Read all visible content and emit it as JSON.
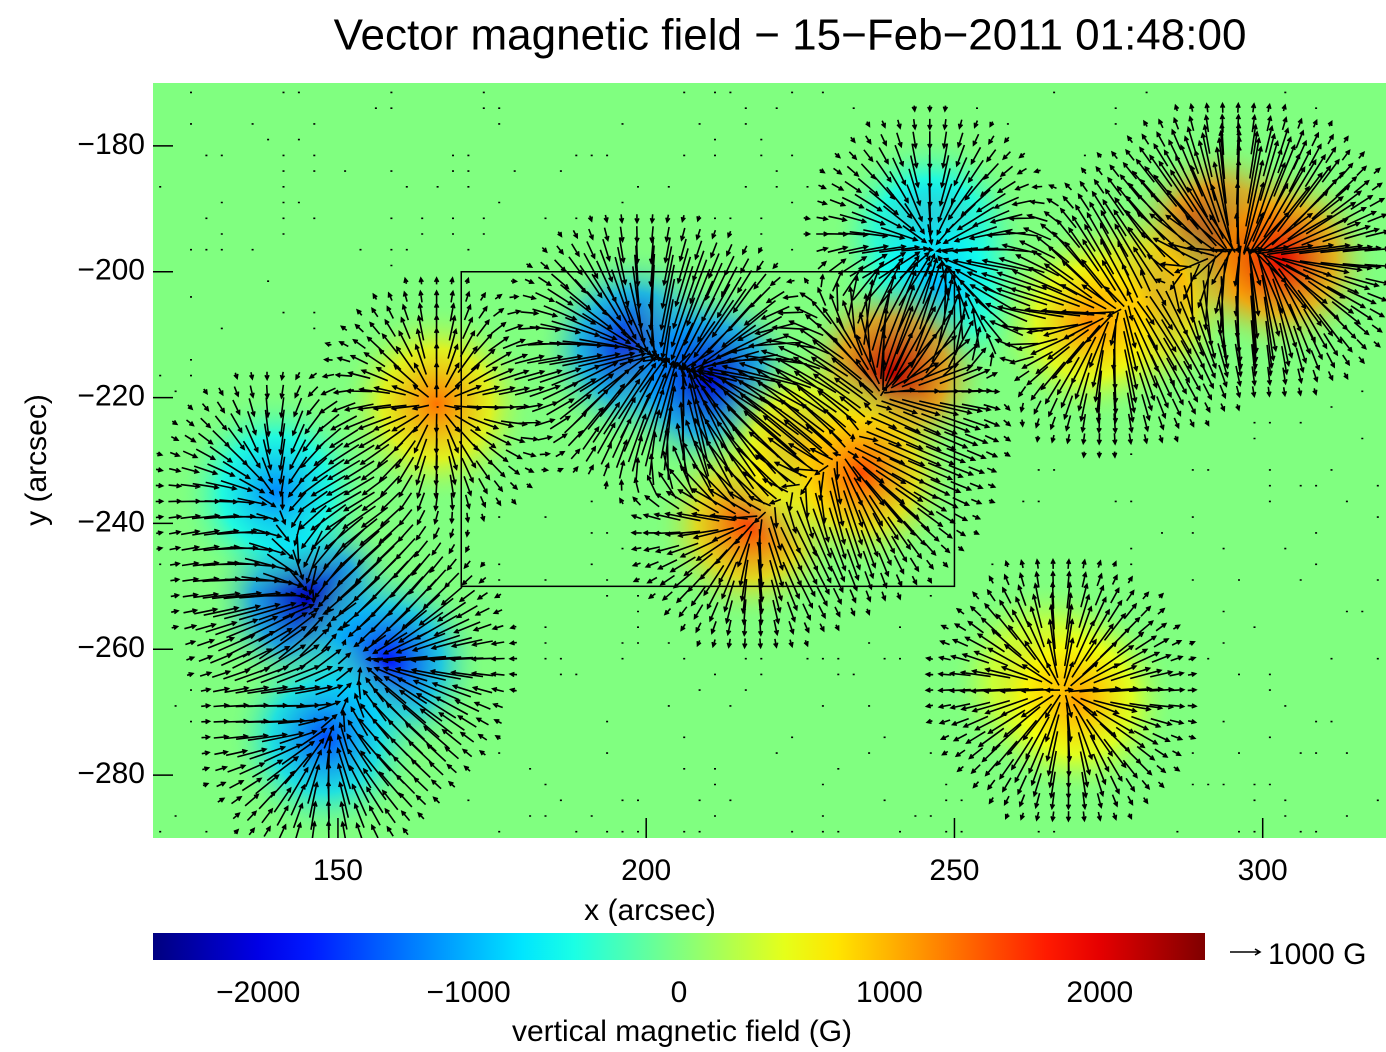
{
  "chart_data": {
    "type": "vector-magnetogram",
    "title": "Vector magnetic field − 15−Feb−2011 01:48:00",
    "x_label": "x (arcsec)",
    "y_label": "y (arcsec)",
    "xlim": [
      120,
      320
    ],
    "ylim": [
      -290,
      -170
    ],
    "xticks": [
      150,
      200,
      250,
      300
    ],
    "yticks": [
      {
        "value": -180,
        "label": "−180"
      },
      {
        "value": -200,
        "label": "−200"
      },
      {
        "value": -220,
        "label": "−220"
      },
      {
        "value": -240,
        "label": "−240"
      },
      {
        "value": -260,
        "label": "−260"
      },
      {
        "value": -280,
        "label": "−280"
      }
    ],
    "colormap": "jet",
    "colorbar_label": "vertical magnetic field (G)",
    "clim": [
      -2500,
      2500
    ],
    "cticks": [
      {
        "value": -2000,
        "label": "−2000"
      },
      {
        "value": -1000,
        "label": "−1000"
      },
      0,
      1000,
      2000
    ],
    "box": {
      "x": [
        170,
        250
      ],
      "y": [
        -200,
        -250
      ]
    },
    "reference_arrow": {
      "value": 1000,
      "label": "1000 G"
    },
    "sources": {
      "x": [
        145,
        158,
        148,
        140,
        198,
        210,
        246,
        247,
        240,
        293,
        280,
        217,
        226,
        166,
        235,
        272,
        265,
        270,
        303
      ],
      "y": [
        -252,
        -262,
        -274,
        -235,
        -212,
        -217,
        -194,
        -203,
        -216,
        -195,
        -205,
        -240,
        -228,
        -221,
        -232,
        -208,
        -265,
        -268,
        -198
      ],
      "values": [
        -2200,
        -1800,
        -1500,
        -1200,
        -2000,
        -2100,
        -1200,
        -1000,
        2200,
        2300,
        1500,
        1600,
        1200,
        1300,
        1500,
        1200,
        1000,
        1100,
        2000
      ]
    }
  }
}
